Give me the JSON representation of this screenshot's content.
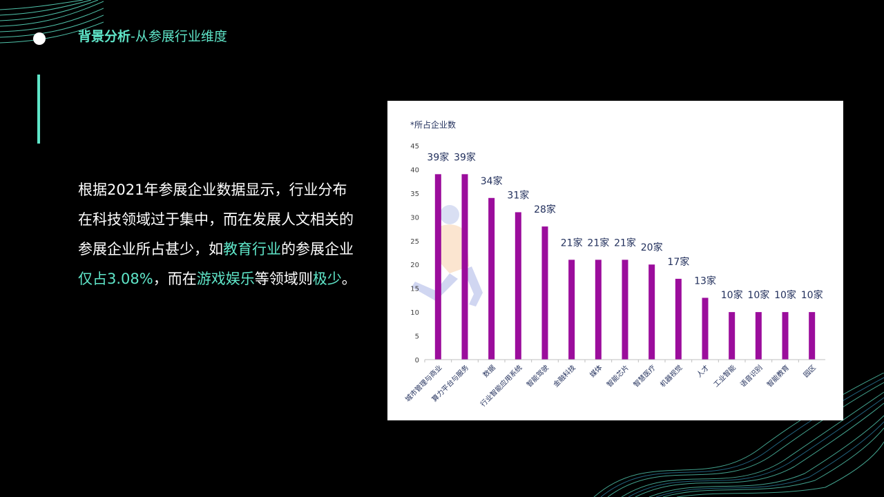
{
  "header": {
    "title_strong": "背景分析",
    "title_sep": "-",
    "title_rest": "从参展行业维度"
  },
  "body": {
    "p1": "根据2021年参展企业数据显示，行业分布在科技领域过于集中，而在发展人文相关的参展企业所占甚少，如",
    "h1": "教育行业",
    "p2": "的参展企业",
    "h2": "仅占3.08%",
    "p3": "，而在",
    "h3": "游戏娱乐",
    "p4": "等领域则",
    "h4": "极少",
    "p5": "。"
  },
  "colors": {
    "accent": "#5fe6c9",
    "bar": "#9b0d9c",
    "label": "#1f2d5a"
  },
  "chart_data": {
    "type": "bar",
    "title": "*所占企业数",
    "categories": [
      "城市管理与商业",
      "算力平台与服务",
      "数据",
      "行业智能应用系统",
      "智能驾驶",
      "金融科技",
      "媒体",
      "智能芯片",
      "智慧医疗",
      "机器视觉",
      "人才",
      "工业智能",
      "语音识别",
      "智能教育",
      "园区"
    ],
    "values": [
      39,
      39,
      34,
      31,
      28,
      21,
      21,
      21,
      20,
      17,
      13,
      10,
      10,
      10,
      10
    ],
    "data_labels": [
      "39家",
      "39家",
      "34家",
      "31家",
      "28家",
      "21家",
      "21家",
      "21家",
      "20家",
      "17家",
      "13家",
      "10家",
      "10家",
      "10家",
      "10家"
    ],
    "yticks": [
      "0",
      "5",
      "10",
      "15",
      "20",
      "25",
      "30",
      "35",
      "40",
      "45"
    ],
    "ylim": [
      0,
      45
    ],
    "grid": false,
    "legend": "none"
  }
}
